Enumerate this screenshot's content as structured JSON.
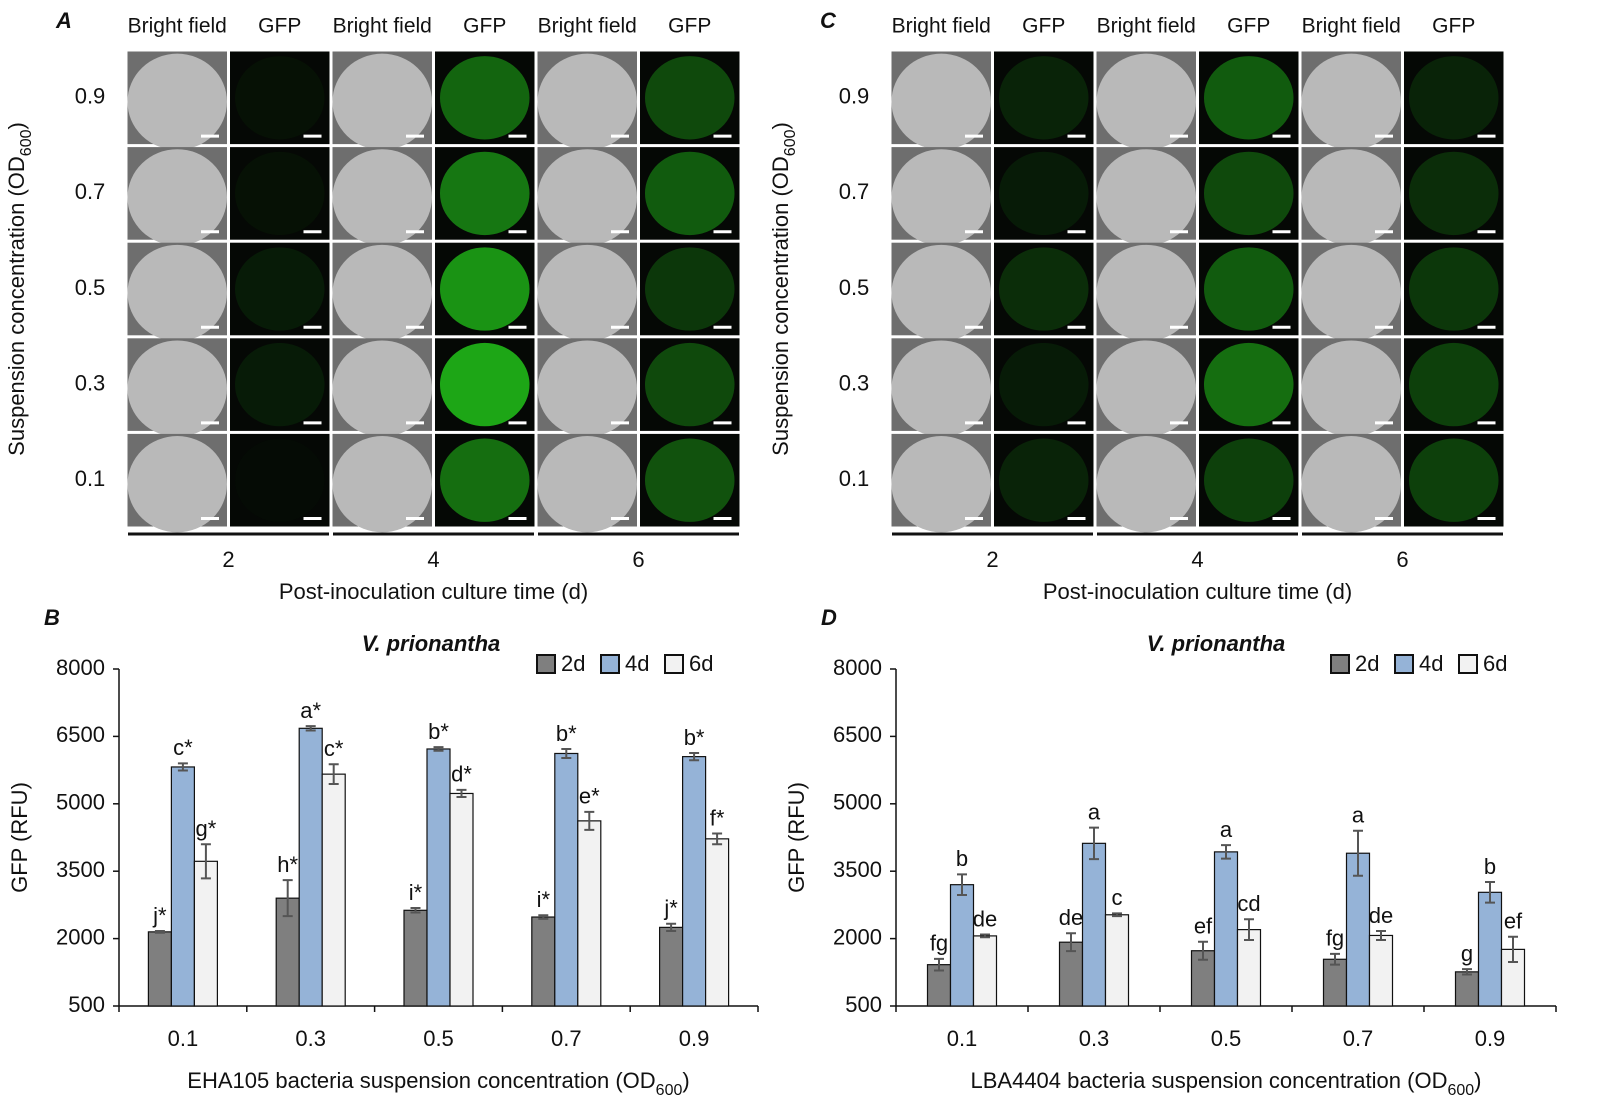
{
  "panels": [
    {
      "letter": "A",
      "column_headers": [
        "Bright field",
        "GFP",
        "Bright field",
        "GFP",
        "Bright field",
        "GFP"
      ],
      "row_labels": [
        "0.9",
        "0.7",
        "0.5",
        "0.3",
        "0.1"
      ],
      "group_labels": [
        "2",
        "4",
        "6"
      ],
      "x_label": "Post-inoculation culture time (d)",
      "y_label": [
        "Suspension concentration (OD",
        "600",
        ")"
      ]
    },
    {
      "letter": "C",
      "column_headers": [
        "Bright field",
        "GFP",
        "Bright field",
        "GFP",
        "Bright field",
        "GFP"
      ],
      "row_labels": [
        "0.9",
        "0.7",
        "0.5",
        "0.3",
        "0.1"
      ],
      "group_labels": [
        "2",
        "4",
        "6"
      ],
      "x_label": "Post-inoculation culture time (d)",
      "y_label": [
        "Suspension concentration (OD",
        "600",
        ")"
      ]
    }
  ],
  "chart_data": [
    {
      "type": "bar",
      "letter": "B",
      "title": "V. prionantha",
      "categories": [
        "0.1",
        "0.3",
        "0.5",
        "0.7",
        "0.9"
      ],
      "x_label": [
        "EHA105 bacteria suspension concentration (OD",
        "600",
        ")"
      ],
      "y_label": "GFP (RFU)",
      "ylim": [
        500,
        8000
      ],
      "yticks": [
        500,
        2000,
        3500,
        5000,
        6500,
        8000
      ],
      "legend": "top-right",
      "series": [
        {
          "name": "2d",
          "color": "#7f7f7f",
          "values": [
            2150,
            2900,
            2630,
            2480,
            2250
          ],
          "errors": [
            20,
            400,
            50,
            40,
            80
          ],
          "annotations": [
            "j*",
            "h*",
            "i*",
            "i*",
            "j*"
          ]
        },
        {
          "name": "4d",
          "color": "#95b3d7",
          "values": [
            5820,
            6680,
            6220,
            6120,
            6050
          ],
          "errors": [
            80,
            50,
            40,
            100,
            80
          ],
          "annotations": [
            "c*",
            "a*",
            "b*",
            "b*",
            "b*"
          ]
        },
        {
          "name": "6d",
          "color": "#f2f2f2",
          "values": [
            3720,
            5660,
            5230,
            4620,
            4220
          ],
          "errors": [
            380,
            220,
            80,
            200,
            120
          ],
          "annotations": [
            "g*",
            "c*",
            "d*",
            "e*",
            "f*"
          ]
        }
      ]
    },
    {
      "type": "bar",
      "letter": "D",
      "title": "V. prionantha",
      "categories": [
        "0.1",
        "0.3",
        "0.5",
        "0.7",
        "0.9"
      ],
      "x_label": [
        "LBA4404 bacteria suspension concentration (OD",
        "600",
        ")"
      ],
      "y_label": "GFP (RFU)",
      "ylim": [
        500,
        8000
      ],
      "yticks": [
        500,
        2000,
        3500,
        5000,
        6500,
        8000
      ],
      "legend": "top-right",
      "series": [
        {
          "name": "2d",
          "color": "#7f7f7f",
          "values": [
            1420,
            1920,
            1730,
            1540,
            1260
          ],
          "errors": [
            130,
            200,
            200,
            120,
            60
          ],
          "annotations": [
            "fg",
            "de",
            "ef",
            "fg",
            "g"
          ]
        },
        {
          "name": "4d",
          "color": "#95b3d7",
          "values": [
            3200,
            4120,
            3930,
            3900,
            3030
          ],
          "errors": [
            230,
            350,
            150,
            500,
            230
          ],
          "annotations": [
            "b",
            "a",
            "a",
            "a",
            "b"
          ]
        },
        {
          "name": "6d",
          "color": "#f2f2f2",
          "values": [
            2060,
            2530,
            2200,
            2070,
            1760
          ],
          "errors": [
            30,
            30,
            230,
            100,
            280
          ],
          "annotations": [
            "de",
            "c",
            "cd",
            "de",
            "ef"
          ]
        }
      ]
    }
  ]
}
